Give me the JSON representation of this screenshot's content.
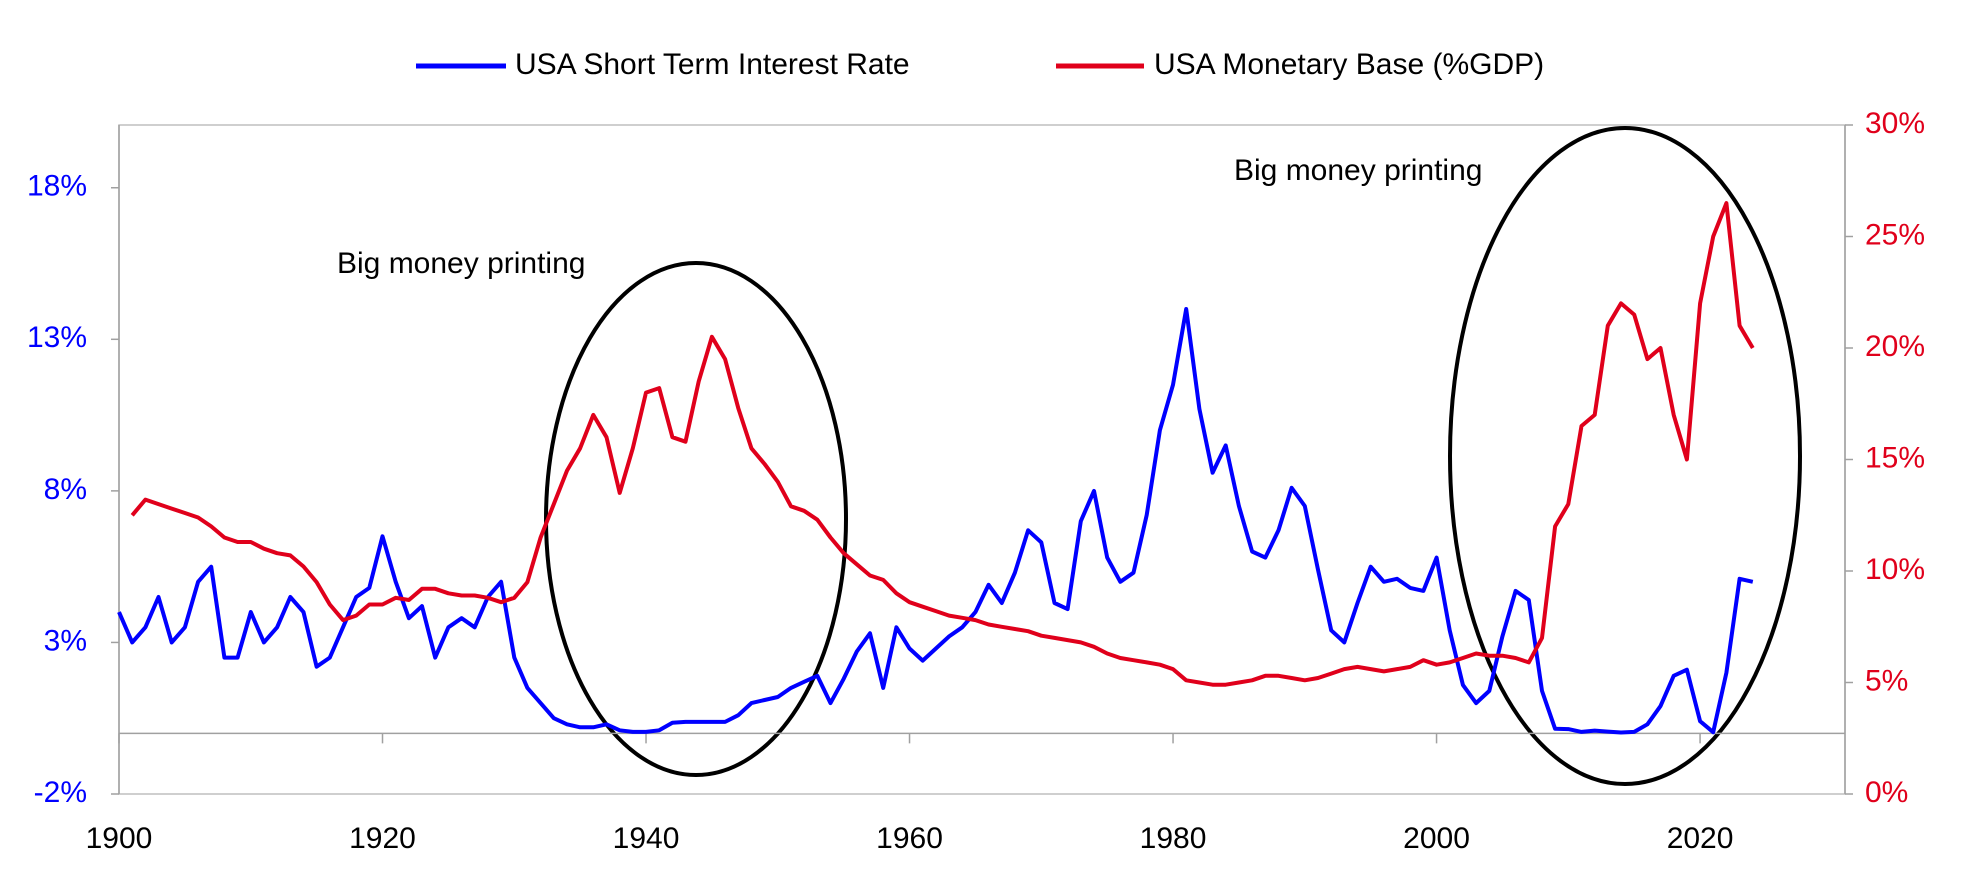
{
  "chart_data": {
    "type": "line",
    "x": [
      1900,
      1901,
      1902,
      1903,
      1904,
      1905,
      1906,
      1907,
      1908,
      1909,
      1910,
      1911,
      1912,
      1913,
      1914,
      1915,
      1916,
      1917,
      1918,
      1919,
      1920,
      1921,
      1922,
      1923,
      1924,
      1925,
      1926,
      1927,
      1928,
      1929,
      1930,
      1931,
      1932,
      1933,
      1934,
      1935,
      1936,
      1937,
      1938,
      1939,
      1940,
      1941,
      1942,
      1943,
      1944,
      1945,
      1946,
      1947,
      1948,
      1949,
      1950,
      1951,
      1952,
      1953,
      1954,
      1955,
      1956,
      1957,
      1958,
      1959,
      1960,
      1961,
      1962,
      1963,
      1964,
      1965,
      1966,
      1967,
      1968,
      1969,
      1970,
      1971,
      1972,
      1973,
      1974,
      1975,
      1976,
      1977,
      1978,
      1979,
      1980,
      1981,
      1982,
      1983,
      1984,
      1985,
      1986,
      1987,
      1988,
      1989,
      1990,
      1991,
      1992,
      1993,
      1994,
      1995,
      1996,
      1997,
      1998,
      1999,
      2000,
      2001,
      2002,
      2003,
      2004,
      2005,
      2006,
      2007,
      2008,
      2009,
      2010,
      2011,
      2012,
      2013,
      2014,
      2015,
      2016,
      2017,
      2018,
      2019,
      2020,
      2021,
      2022,
      2023,
      2024
    ],
    "series": [
      {
        "name": "USA Short Term Interest Rate",
        "color": "#0000ff",
        "axis": "y",
        "values": [
          4,
          3,
          3.5,
          4.5,
          3,
          3.5,
          5,
          5.5,
          2.5,
          2.5,
          4,
          3,
          3.5,
          4.5,
          4,
          2.2,
          2.5,
          3.5,
          4.5,
          4.8,
          6.5,
          5,
          3.8,
          4.2,
          2.5,
          3.5,
          3.8,
          3.5,
          4.5,
          5,
          2.5,
          1.5,
          1,
          0.5,
          0.3,
          0.2,
          0.2,
          0.3,
          0.1,
          0.05,
          0.05,
          0.1,
          0.35,
          0.38,
          0.38,
          0.38,
          0.38,
          0.6,
          1,
          1.1,
          1.2,
          1.5,
          1.7,
          1.9,
          1,
          1.8,
          2.7,
          3.3,
          1.5,
          3.5,
          2.8,
          2.4,
          2.8,
          3.2,
          3.5,
          4,
          4.9,
          4.3,
          5.3,
          6.7,
          6.3,
          4.3,
          4.1,
          7,
          8,
          5.8,
          5,
          5.3,
          7.2,
          10,
          11.5,
          14,
          10.7,
          8.6,
          9.5,
          7.5,
          6,
          5.8,
          6.7,
          8.1,
          7.5,
          5.4,
          3.4,
          3,
          4.3,
          5.5,
          5,
          5.1,
          4.8,
          4.7,
          5.8,
          3.4,
          1.6,
          1,
          1.4,
          3.2,
          4.7,
          4.4,
          1.4,
          0.15,
          0.14,
          0.05,
          0.09,
          0.06,
          0.03,
          0.05,
          0.3,
          0.9,
          1.9,
          2.1,
          0.4,
          0.04,
          2,
          5.1,
          5
        ]
      },
      {
        "name": "USA Monetary Base (%GDP)",
        "color": "#e0001b",
        "axis": "y2",
        "values": [
          null,
          12.5,
          13.2,
          13,
          12.8,
          12.6,
          12.4,
          12,
          11.5,
          11.3,
          11.3,
          11,
          10.8,
          10.7,
          10.2,
          9.5,
          8.5,
          7.8,
          8,
          8.5,
          8.5,
          8.8,
          8.7,
          9.2,
          9.2,
          9,
          8.9,
          8.9,
          8.8,
          8.6,
          8.8,
          9.5,
          11.5,
          13,
          14.5,
          15.5,
          17,
          16,
          13.5,
          15.5,
          18,
          18.2,
          16,
          15.8,
          18.5,
          20.5,
          19.5,
          17.3,
          15.5,
          14.8,
          14,
          12.9,
          12.7,
          12.3,
          11.5,
          10.8,
          10.3,
          9.8,
          9.6,
          9,
          8.6,
          8.4,
          8.2,
          8,
          7.9,
          7.8,
          7.6,
          7.5,
          7.4,
          7.3,
          7.1,
          7,
          6.9,
          6.8,
          6.6,
          6.3,
          6.1,
          6,
          5.9,
          5.8,
          5.6,
          5.1,
          5,
          4.9,
          4.9,
          5,
          5.1,
          5.3,
          5.3,
          5.2,
          5.1,
          5.2,
          5.4,
          5.6,
          5.7,
          5.6,
          5.5,
          5.6,
          5.7,
          6,
          5.8,
          5.9,
          6.1,
          6.3,
          6.2,
          6.2,
          6.1,
          5.9,
          7,
          12,
          13,
          16.5,
          17,
          21,
          22,
          21.5,
          19.5,
          20,
          17,
          15,
          22,
          25,
          26.5,
          21,
          20
        ]
      }
    ],
    "xlim": [
      1900,
      2031
    ],
    "xticks": [
      1900,
      1920,
      1940,
      1960,
      1980,
      2000,
      2020
    ],
    "ylim": [
      -2,
      20.07
    ],
    "yticks": [
      {
        "value": -2,
        "label": "-2%"
      },
      {
        "value": 3,
        "label": "3%"
      },
      {
        "value": 8,
        "label": "8%"
      },
      {
        "value": 13,
        "label": "13%"
      },
      {
        "value": 18,
        "label": "18%"
      }
    ],
    "y2lim": [
      0,
      30
    ],
    "y2ticks": [
      {
        "value": 0,
        "label": "0%"
      },
      {
        "value": 5,
        "label": "5%"
      },
      {
        "value": 10,
        "label": "10%"
      },
      {
        "value": 15,
        "label": "15%"
      },
      {
        "value": 20,
        "label": "20%"
      },
      {
        "value": 25,
        "label": "25%"
      },
      {
        "value": 30,
        "label": "30%"
      }
    ],
    "legend": "top",
    "annotations": [
      {
        "text": "Big money printing"
      },
      {
        "text": "Big money printing"
      }
    ]
  }
}
